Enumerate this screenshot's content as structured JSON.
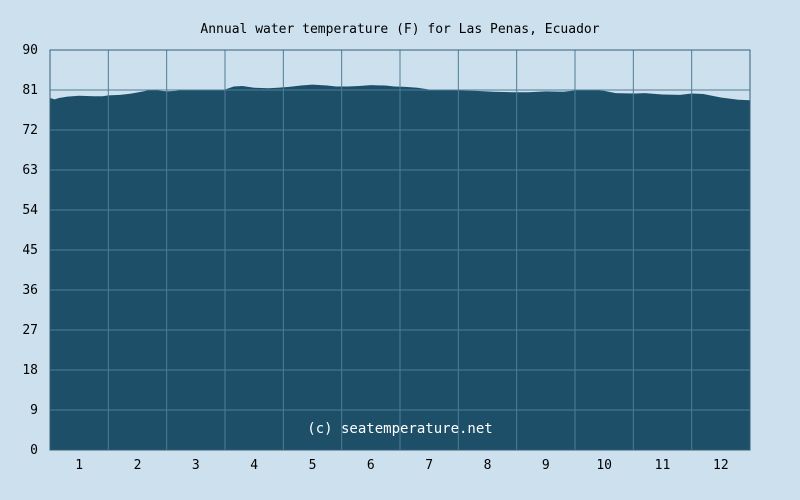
{
  "chart_data": {
    "type": "area",
    "title": "Annual water temperature (F) for Las Penas, Ecuador",
    "credit": "(c) seatemperature.net",
    "xlabel": "",
    "ylabel": "",
    "categories": [
      "1",
      "2",
      "3",
      "4",
      "5",
      "6",
      "7",
      "8",
      "9",
      "10",
      "11",
      "12"
    ],
    "yticks": [
      "0",
      "9",
      "18",
      "27",
      "36",
      "45",
      "54",
      "63",
      "72",
      "81",
      "90"
    ],
    "ylim": [
      0,
      90
    ],
    "xlim": [
      0,
      12
    ],
    "grid": true,
    "colors": {
      "background": "#cce0ee",
      "fill": "#1e4f69",
      "grid": "#4f7d96",
      "axis": "#365f78"
    },
    "series": [
      {
        "x": [
          0,
          0.08,
          0.15,
          0.3,
          0.5,
          0.75,
          0.9,
          1.0,
          1.2,
          1.4,
          1.6,
          1.75,
          1.85,
          2.0,
          2.15,
          2.3,
          2.5,
          2.75,
          3.0,
          3.15,
          3.3,
          3.5,
          3.75,
          3.9,
          4.1,
          4.3,
          4.5,
          4.75,
          4.9,
          5.1,
          5.3,
          5.5,
          5.75,
          5.9,
          6.1,
          6.3,
          6.5,
          6.8,
          7.0,
          7.3,
          7.6,
          7.9,
          8.2,
          8.5,
          8.8,
          9.0,
          9.3,
          9.5,
          9.7,
          10.0,
          10.2,
          10.5,
          10.8,
          11.0,
          11.2,
          11.5,
          11.8,
          12.0
        ],
        "values": [
          79.2,
          78.9,
          79.2,
          79.5,
          79.7,
          79.6,
          79.6,
          79.8,
          79.9,
          80.2,
          80.7,
          81.1,
          80.9,
          80.7,
          80.8,
          81.0,
          81.1,
          81.1,
          81.1,
          81.8,
          81.9,
          81.5,
          81.4,
          81.5,
          81.7,
          82.0,
          82.2,
          82.0,
          81.8,
          81.8,
          81.9,
          82.1,
          82.0,
          81.8,
          81.7,
          81.5,
          81.1,
          81.0,
          80.9,
          80.8,
          80.6,
          80.5,
          80.5,
          80.7,
          80.6,
          80.9,
          81.0,
          80.8,
          80.3,
          80.2,
          80.3,
          80.0,
          79.9,
          80.2,
          80.1,
          79.3,
          78.8,
          78.7
        ]
      }
    ]
  }
}
